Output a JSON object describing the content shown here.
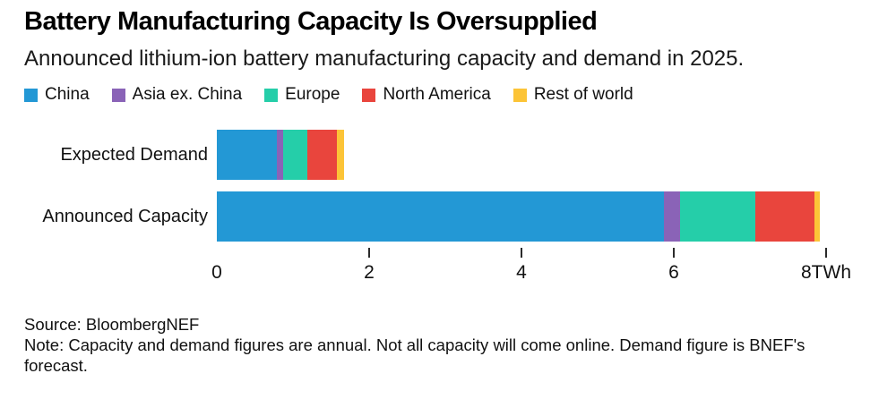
{
  "header": {
    "title": "Battery Manufacturing Capacity Is Oversupplied",
    "subtitle": "Announced lithium-ion battery manufacturing capacity and demand in 2025."
  },
  "footer": {
    "source": "Source: BloombergNEF",
    "note": "Note: Capacity and demand figures are annual. Not all capacity will come online. Demand figure is BNEF's forecast."
  },
  "colors": {
    "china": "#2398D5",
    "asia_ex_china": "#8A63B7",
    "europe": "#25CEA9",
    "north_america": "#E9453D",
    "rest_of_world": "#FCC437"
  },
  "chart_data": {
    "type": "bar",
    "orientation": "horizontal",
    "stacked": true,
    "unit": "TWh",
    "categories": [
      "Expected Demand",
      "Announced Capacity"
    ],
    "series": [
      {
        "name": "China",
        "color": "#2398D5",
        "values": [
          0.79,
          5.87
        ]
      },
      {
        "name": "Asia ex. China",
        "color": "#8A63B7",
        "values": [
          0.08,
          0.21
        ]
      },
      {
        "name": "Europe",
        "color": "#25CEA9",
        "values": [
          0.32,
          0.99
        ]
      },
      {
        "name": "North America",
        "color": "#E9453D",
        "values": [
          0.39,
          0.78
        ]
      },
      {
        "name": "Rest of world",
        "color": "#FCC437",
        "values": [
          0.09,
          0.07
        ]
      }
    ],
    "totals": [
      1.67,
      7.92
    ],
    "xlim": [
      0,
      8
    ],
    "xticks": [
      0,
      2,
      4,
      6,
      8
    ],
    "xtick_labels": [
      "0",
      "2",
      "4",
      "6",
      "8TWh"
    ],
    "ticks_drawn_at": [
      2,
      4,
      6,
      8
    ],
    "legend_position": "top",
    "grid": false
  }
}
